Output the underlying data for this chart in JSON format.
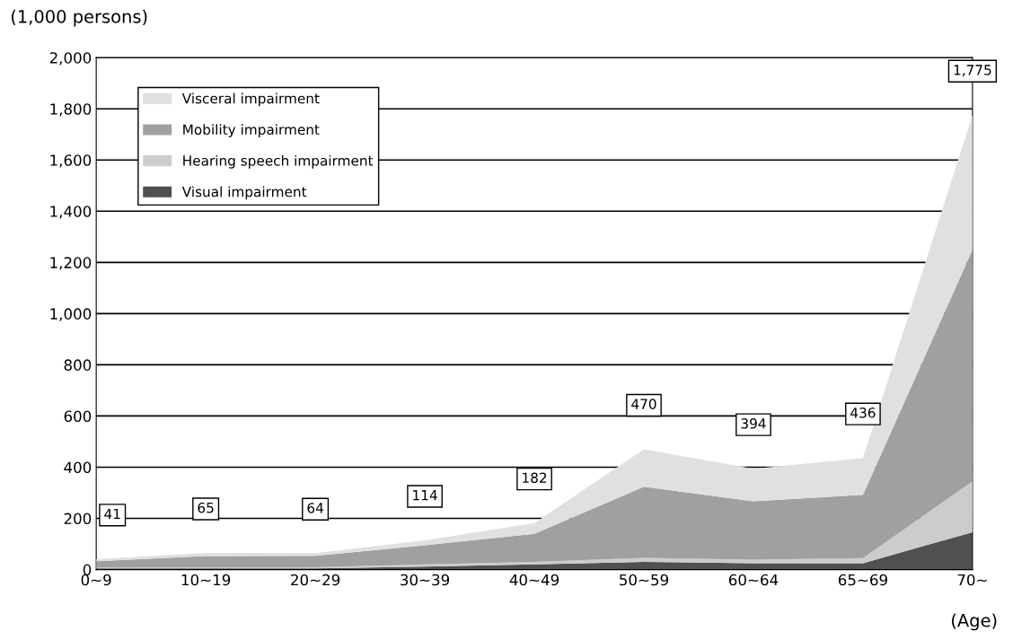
{
  "chart_data": {
    "type": "area",
    "stacked": true,
    "ylabel": "(1,000 persons)",
    "xlabel": "(Age)",
    "categories": [
      "0∼9",
      "10∼19",
      "20∼29",
      "30∼39",
      "40∼49",
      "50∼59",
      "60∼64",
      "65∼69",
      "70∼"
    ],
    "series": [
      {
        "name": "Visual impairment",
        "color": "#505050",
        "values": [
          5,
          5,
          5,
          12,
          20,
          30,
          25,
          25,
          146
        ]
      },
      {
        "name": "Hearing speech impairment",
        "color": "#cccccc",
        "values": [
          3,
          3,
          4,
          8,
          10,
          16,
          14,
          20,
          199
        ]
      },
      {
        "name": "Mobility impairment",
        "color": "#a0a0a0",
        "values": [
          25,
          45,
          45,
          75,
          110,
          278,
          228,
          247,
          904
        ]
      },
      {
        "name": "Visceral impairment",
        "color": "#e0e0e0",
        "values": [
          8,
          12,
          10,
          19,
          42,
          146,
          127,
          144,
          526
        ]
      }
    ],
    "totals": [
      "41",
      "65",
      "64",
      "114",
      "182",
      "470",
      "394",
      "436",
      "1,775"
    ],
    "ylim": [
      0,
      2000
    ],
    "yticks": [
      0,
      200,
      400,
      600,
      800,
      {
        "value": 1000,
        "label": "1,000"
      },
      {
        "value": 1200,
        "label": "1,200"
      },
      {
        "value": 1400,
        "label": "1,400"
      },
      {
        "value": 1600,
        "label": "1,600"
      },
      {
        "value": 1800,
        "label": "1,800"
      },
      {
        "value": 2000,
        "label": "2,000"
      }
    ],
    "grid": "y",
    "legend": "top left"
  }
}
